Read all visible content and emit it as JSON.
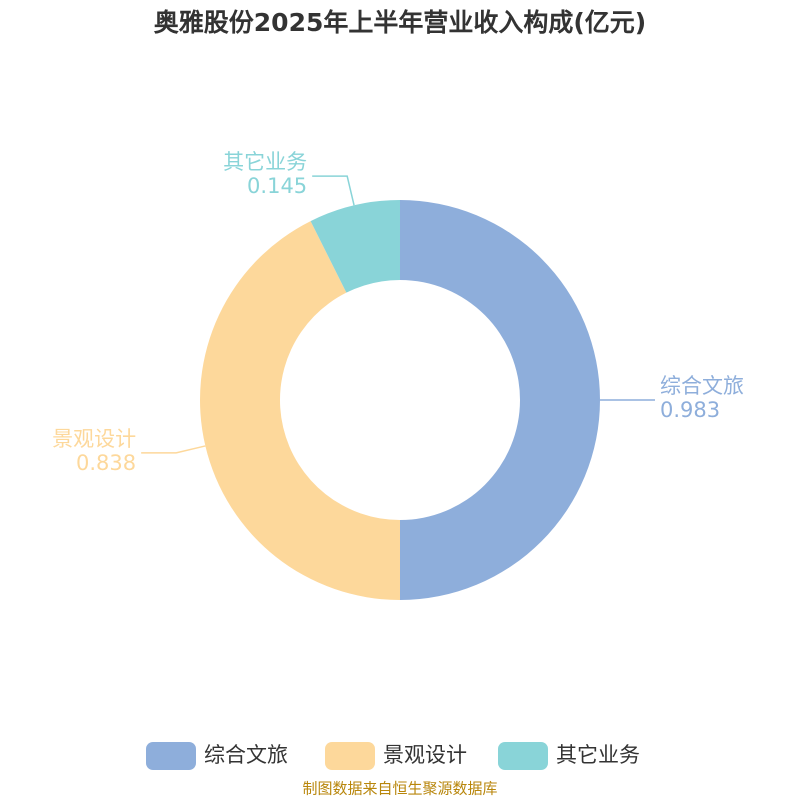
{
  "chart_data": {
    "type": "donut",
    "title": "奥雅股份2025年上半年营业收入构成(亿元)",
    "categories": [
      "综合文旅",
      "景观设计",
      "其它业务"
    ],
    "values": [
      0.983,
      0.838,
      0.145
    ],
    "colors": [
      "#8eaedb",
      "#fdd89b",
      "#89d4d8"
    ],
    "source": "制图数据来自恒生聚源数据库"
  }
}
